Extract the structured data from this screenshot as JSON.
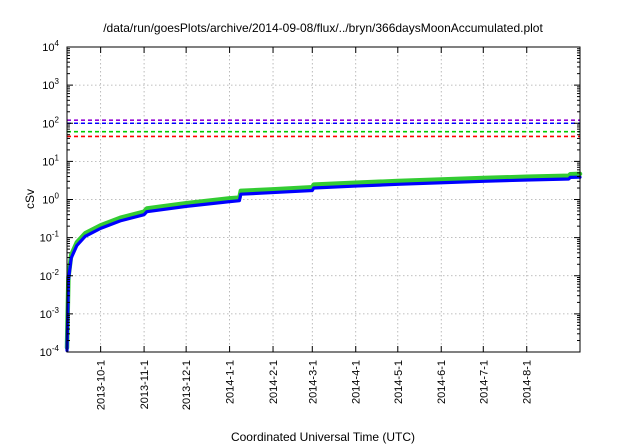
{
  "chart_data": {
    "type": "line",
    "title": "/data/run/goesPlots/archive/2014-09-08/flux/../bryn/366daysMoonAccumulated.plot",
    "xlabel": "Coordinated Universal Time (UTC)",
    "ylabel": "cSv",
    "yscale": "log",
    "ylim": [
      0.0001,
      10000
    ],
    "xlim": [
      "2013-09-07",
      "2014-09-08"
    ],
    "grid": true,
    "y_ticks": [
      {
        "value": 0.0001,
        "base": "10",
        "exp": "-4"
      },
      {
        "value": 0.001,
        "base": "10",
        "exp": "-3"
      },
      {
        "value": 0.01,
        "base": "10",
        "exp": "-2"
      },
      {
        "value": 0.1,
        "base": "10",
        "exp": "-1"
      },
      {
        "value": 1,
        "base": "10",
        "exp": "0"
      },
      {
        "value": 10,
        "base": "10",
        "exp": "1"
      },
      {
        "value": 100,
        "base": "10",
        "exp": "2"
      },
      {
        "value": 1000,
        "base": "10",
        "exp": "3"
      },
      {
        "value": 10000,
        "base": "10",
        "exp": "4"
      }
    ],
    "x_ticks": [
      {
        "date": "2013-10-01",
        "label": "2013-10-1"
      },
      {
        "date": "2013-11-01",
        "label": "2013-11-1"
      },
      {
        "date": "2013-12-01",
        "label": "2013-12-1"
      },
      {
        "date": "2014-01-01",
        "label": "2014-1-1"
      },
      {
        "date": "2014-02-01",
        "label": "2014-2-1"
      },
      {
        "date": "2014-03-01",
        "label": "2014-3-1"
      },
      {
        "date": "2014-04-01",
        "label": "2014-4-1"
      },
      {
        "date": "2014-05-01",
        "label": "2014-5-1"
      },
      {
        "date": "2014-06-01",
        "label": "2014-6-1"
      },
      {
        "date": "2014-07-01",
        "label": "2014-7-1"
      },
      {
        "date": "2014-08-01",
        "label": "2014-8-1"
      }
    ],
    "threshold_lines": [
      {
        "value": 120,
        "color": "#9400d3",
        "style": "dashed"
      },
      {
        "value": 100,
        "color": "#0000ff",
        "style": "dashed"
      },
      {
        "value": 60,
        "color": "#00cc00",
        "style": "dashed"
      },
      {
        "value": 45,
        "color": "#ff0000",
        "style": "dashed"
      }
    ],
    "series": [
      {
        "color": "#33cc33",
        "points": [
          [
            "2013-09-07",
            0.00013
          ],
          [
            "2013-09-08",
            0.009
          ],
          [
            "2013-09-10",
            0.035
          ],
          [
            "2013-09-14",
            0.075
          ],
          [
            "2013-09-20",
            0.13
          ],
          [
            "2013-10-01",
            0.21
          ],
          [
            "2013-10-15",
            0.33
          ],
          [
            "2013-11-01",
            0.48
          ],
          [
            "2013-11-03",
            0.58
          ],
          [
            "2013-12-01",
            0.8
          ],
          [
            "2014-01-01",
            1.07
          ],
          [
            "2014-01-08",
            1.12
          ],
          [
            "2014-01-09",
            1.68
          ],
          [
            "2014-02-01",
            1.85
          ],
          [
            "2014-03-01",
            2.1
          ],
          [
            "2014-03-02",
            2.45
          ],
          [
            "2014-04-01",
            2.75
          ],
          [
            "2014-05-01",
            3.05
          ],
          [
            "2014-06-01",
            3.35
          ],
          [
            "2014-07-01",
            3.65
          ],
          [
            "2014-08-01",
            3.95
          ],
          [
            "2014-08-31",
            4.2
          ],
          [
            "2014-09-01",
            4.6
          ],
          [
            "2014-09-08",
            4.7
          ]
        ]
      },
      {
        "color": "#0000ff",
        "points": [
          [
            "2013-09-07",
            0.00011
          ],
          [
            "2013-09-08",
            0.0075
          ],
          [
            "2013-09-10",
            0.029
          ],
          [
            "2013-09-14",
            0.062
          ],
          [
            "2013-09-20",
            0.108
          ],
          [
            "2013-10-01",
            0.175
          ],
          [
            "2013-10-15",
            0.275
          ],
          [
            "2013-11-01",
            0.4
          ],
          [
            "2013-11-03",
            0.48
          ],
          [
            "2013-12-01",
            0.66
          ],
          [
            "2014-01-01",
            0.88
          ],
          [
            "2014-01-08",
            0.93
          ],
          [
            "2014-01-09",
            1.38
          ],
          [
            "2014-02-01",
            1.52
          ],
          [
            "2014-03-01",
            1.72
          ],
          [
            "2014-03-02",
            2.0
          ],
          [
            "2014-04-01",
            2.25
          ],
          [
            "2014-05-01",
            2.5
          ],
          [
            "2014-06-01",
            2.75
          ],
          [
            "2014-07-01",
            3.0
          ],
          [
            "2014-08-01",
            3.25
          ],
          [
            "2014-08-31",
            3.45
          ],
          [
            "2014-09-01",
            3.8
          ],
          [
            "2014-09-08",
            3.85
          ]
        ]
      }
    ]
  }
}
